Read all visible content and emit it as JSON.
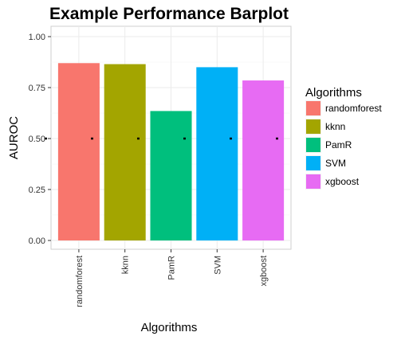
{
  "chart_data": {
    "type": "bar",
    "title": "Example Performance Barplot",
    "xlabel": "Algorithms",
    "ylabel": "AUROC",
    "categories": [
      "randomforest",
      "kknn",
      "PamR",
      "SVM",
      "xgboost"
    ],
    "values": [
      0.87,
      0.865,
      0.635,
      0.85,
      0.785
    ],
    "colors": [
      "#F8766D",
      "#A3A500",
      "#00BF7D",
      "#00B0F6",
      "#E76BF3"
    ],
    "ylim": [
      0,
      1.05
    ],
    "yticks": [
      0.0,
      0.25,
      0.5,
      0.75,
      1.0
    ],
    "ytick_labels": [
      "0.00",
      "0.25",
      "0.50",
      "0.75",
      "1.00"
    ],
    "reference_line": 0.5,
    "grid": true,
    "legend": {
      "title": "Algorithms",
      "placement": "right",
      "entries": [
        "randomforest",
        "kknn",
        "PamR",
        "SVM",
        "xgboost"
      ]
    }
  }
}
